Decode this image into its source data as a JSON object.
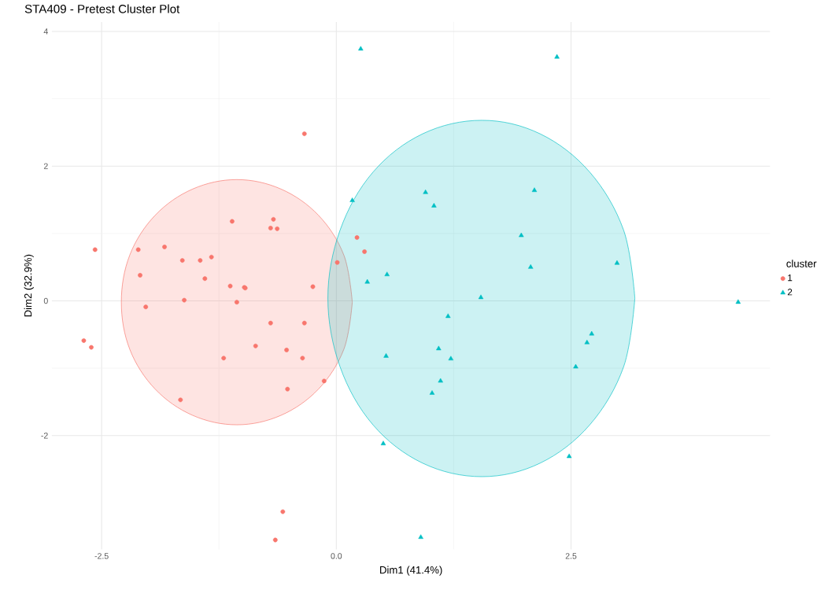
{
  "chart_data": {
    "type": "scatter",
    "title": "STA409 - Pretest Cluster Plot",
    "xlabel": "Dim1 (41.4%)",
    "ylabel": "Dim2 (32.9%)",
    "legend_title": "cluster",
    "legend": "right",
    "grid": true,
    "xlim": [
      -3.03,
      4.62
    ],
    "ylim": [
      -3.69,
      4.14
    ],
    "xticks": [
      -2.5,
      {
        "value": 0,
        "label": "0.0"
      },
      2.5
    ],
    "yticks": [
      -2,
      0,
      2,
      4
    ],
    "series": [
      {
        "type": "area",
        "color": "#F8766D",
        "x": [
          0.17,
          0.08,
          -0.19,
          -0.59,
          -1.06,
          -1.53,
          -1.93,
          -2.2,
          -2.29,
          -2.2,
          -1.93,
          -1.53,
          -1.06,
          -0.59,
          -0.19,
          0.08,
          0.17
        ],
        "values": [
          -0.02,
          0.68,
          1.27,
          1.66,
          1.8,
          1.66,
          1.27,
          0.68,
          -0.02,
          -0.72,
          -1.31,
          -1.7,
          -1.84,
          -1.7,
          -1.31,
          -0.72,
          -0.02
        ]
      },
      {
        "type": "area",
        "color": "#00BFC4",
        "x": [
          3.18,
          3.06,
          2.7,
          2.17,
          1.55,
          0.92,
          0.39,
          0.04,
          -0.09,
          0.04,
          0.39,
          0.92,
          1.55,
          2.17,
          2.7,
          3.06,
          3.18
        ],
        "values": [
          0.04,
          1.05,
          1.91,
          2.48,
          2.68,
          2.48,
          1.91,
          1.05,
          0.04,
          -0.98,
          -1.84,
          -2.41,
          -2.61,
          -2.41,
          -1.84,
          -0.98,
          0.04
        ]
      },
      {
        "name": "1",
        "color": "#F8766D",
        "marker": "circle",
        "x": [
          -0.34,
          -1.11,
          -0.67,
          -0.7,
          -0.63,
          -2.57,
          -2.11,
          -1.83,
          -1.64,
          -1.45,
          -1.33,
          -2.09,
          -1.4,
          -1.13,
          -0.98,
          -0.97,
          -0.25,
          -1.62,
          -2.03,
          -2.69,
          -2.61,
          -0.7,
          -0.34,
          -0.86,
          -0.53,
          -0.36,
          -1.2,
          -0.13,
          -0.52,
          -1.66,
          0.01,
          0.22,
          0.3,
          -0.57,
          -0.65,
          -1.06
        ],
        "values": [
          2.48,
          1.18,
          1.21,
          1.08,
          1.07,
          0.76,
          0.76,
          0.8,
          0.6,
          0.6,
          0.65,
          0.38,
          0.33,
          0.22,
          0.2,
          0.19,
          0.21,
          0.01,
          -0.09,
          -0.59,
          -0.69,
          -0.33,
          -0.33,
          -0.67,
          -0.73,
          -0.85,
          -0.85,
          -1.19,
          -1.31,
          -1.47,
          0.57,
          0.94,
          0.73,
          -3.13,
          -3.55,
          -0.02
        ]
      },
      {
        "name": "2",
        "color": "#00BFC4",
        "marker": "triangle",
        "x": [
          0.26,
          2.35,
          0.17,
          0.95,
          1.04,
          2.11,
          1.97,
          2.99,
          2.07,
          0.54,
          0.33,
          1.19,
          2.72,
          2.67,
          1.09,
          0.53,
          1.22,
          2.55,
          1.11,
          1.02,
          0.5,
          2.48,
          0.9,
          4.28,
          1.54
        ],
        "values": [
          3.74,
          3.62,
          1.49,
          1.61,
          1.41,
          1.64,
          0.97,
          0.56,
          0.5,
          0.39,
          0.28,
          -0.23,
          -0.49,
          -0.62,
          -0.71,
          -0.82,
          -0.86,
          -0.98,
          -1.19,
          -1.37,
          -2.12,
          -2.31,
          -3.51,
          -0.02,
          0.05
        ]
      }
    ]
  }
}
